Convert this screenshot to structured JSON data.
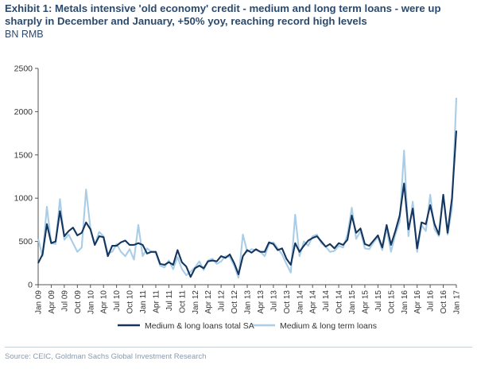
{
  "title": "Exhibit 1: Metals intensive 'old economy' credit - medium and long term loans - were up sharply in December and January, +50% yoy, reaching record high levels",
  "subtitle": "BN RMB",
  "source": "Source: CEIC, Goldman Sachs Global Investment Research",
  "colors": {
    "sa": "#14355e",
    "raw": "#a9cde6",
    "axis": "#555555",
    "text": "#333333"
  },
  "chart_data": {
    "type": "line",
    "title": "Exhibit 1: Metals intensive 'old economy' credit - medium and long term loans - were up sharply in December and January, +50% yoy, reaching record high levels",
    "ylabel": "BN RMB",
    "ylim": [
      0,
      2500
    ],
    "yticks": [
      0,
      500,
      1000,
      1500,
      2000,
      2500
    ],
    "grid": false,
    "legend_position": "bottom",
    "x_start": "2009-01",
    "x_end": "2017-01",
    "x_tick_labels": [
      "Jan 09",
      "Apr 09",
      "Jul 09",
      "Oct 09",
      "Jan 10",
      "Apr 10",
      "Jul 10",
      "Oct 10",
      "Jan 11",
      "Apr 11",
      "Jul 11",
      "Oct 11",
      "Jan 12",
      "Apr 12",
      "Jul 12",
      "Oct 12",
      "Jan 13",
      "Apr 13",
      "Jul 13",
      "Oct 13",
      "Jan 14",
      "Apr 14",
      "Jul 14",
      "Oct 14",
      "Jan 15",
      "Apr 15",
      "Jul 15",
      "Oct 15",
      "Jan 16",
      "Apr 16",
      "Jul 16",
      "Oct 16",
      "Jan 17"
    ],
    "series": [
      {
        "name": "Medium & long loans total SA",
        "values": [
          250,
          350,
          700,
          480,
          500,
          850,
          560,
          620,
          660,
          570,
          600,
          720,
          640,
          460,
          560,
          550,
          330,
          450,
          450,
          490,
          510,
          460,
          460,
          480,
          460,
          360,
          380,
          380,
          240,
          230,
          260,
          230,
          400,
          260,
          210,
          90,
          190,
          220,
          190,
          270,
          280,
          270,
          330,
          310,
          350,
          250,
          120,
          330,
          400,
          370,
          410,
          380,
          380,
          490,
          470,
          400,
          420,
          300,
          230,
          480,
          380,
          450,
          510,
          540,
          560,
          500,
          440,
          470,
          420,
          480,
          460,
          520,
          800,
          600,
          650,
          470,
          450,
          510,
          570,
          430,
          690,
          460,
          620,
          800,
          1170,
          640,
          880,
          420,
          720,
          700,
          920,
          700,
          580,
          1040,
          600,
          1000,
          1780
        ]
      },
      {
        "name": "Medium & long term loans",
        "values": [
          530,
          330,
          900,
          480,
          470,
          990,
          520,
          580,
          480,
          380,
          430,
          1100,
          650,
          460,
          610,
          560,
          360,
          380,
          470,
          380,
          330,
          410,
          290,
          690,
          330,
          420,
          380,
          370,
          220,
          200,
          280,
          180,
          320,
          180,
          110,
          150,
          200,
          270,
          170,
          280,
          300,
          240,
          270,
          330,
          320,
          220,
          80,
          580,
          380,
          410,
          400,
          380,
          330,
          470,
          490,
          420,
          350,
          240,
          140,
          810,
          330,
          500,
          450,
          560,
          580,
          480,
          440,
          380,
          390,
          450,
          430,
          580,
          890,
          530,
          620,
          420,
          410,
          490,
          550,
          400,
          650,
          380,
          580,
          730,
          1550,
          560,
          960,
          380,
          690,
          620,
          1040,
          640,
          560,
          1030,
          580,
          880,
          2160
        ]
      }
    ]
  }
}
